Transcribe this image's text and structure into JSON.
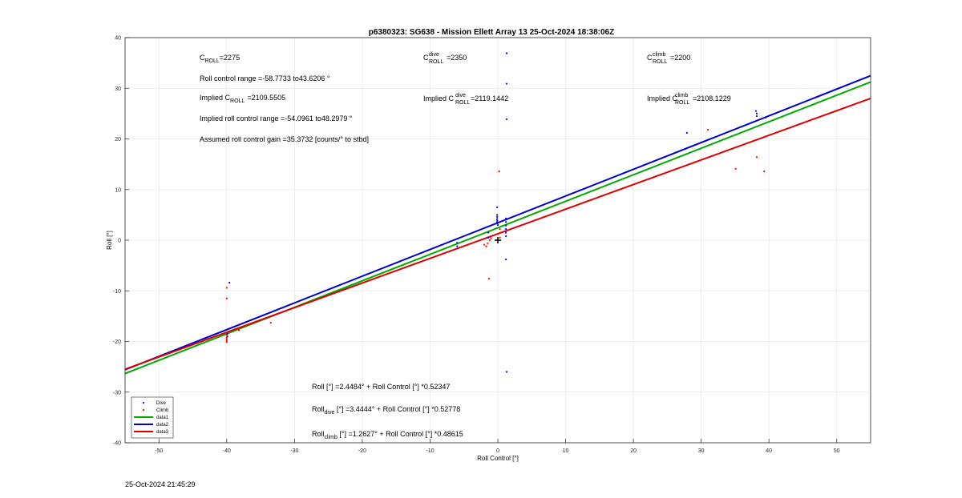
{
  "footer": {
    "timestamp": "25-Oct-2024 21:45:29"
  },
  "annotations": {
    "c_roll": {
      "main": "C",
      "sub": "ROLL",
      "value": "=2275"
    },
    "c_roll_dive": {
      "main": "C",
      "sup": "dive",
      "sub": "ROLL",
      "value": "=2350"
    },
    "c_roll_climb": {
      "main": "C",
      "sup": "climb",
      "sub": "ROLL",
      "value": "=2200"
    },
    "roll_range": "Roll control range =-58.7733 to43.6206 °",
    "implied_c_roll": {
      "prefix": "Implied C",
      "sub": "ROLL",
      "value": "=2109.5505"
    },
    "implied_c_roll_dive": {
      "prefix": "Implied C",
      "sup": "dive",
      "sub": "ROLL",
      "value": "=2119.1442"
    },
    "implied_c_roll_climb": {
      "prefix": "Implied C",
      "sup": "climb",
      "sub": "ROLL",
      "value": "=2108.1229"
    },
    "implied_range": "Implied roll control range =-54.0961 to48.2979 °",
    "gain": "Assumed roll control gain =35.3732 [counts/° to stbd]",
    "eq_all": "Roll [°] =2.4484° + Roll Control [°] *0.52347",
    "eq_dive": {
      "main": "Roll",
      "sub": "dive",
      "rest": " [°] =3.4444° + Roll Control [°] *0.52778"
    },
    "eq_climb": {
      "main": "Roll",
      "sub": "climb",
      "rest": " [°] =1.2627° + Roll Control [°] *0.48615"
    }
  },
  "chart_data": {
    "type": "scatter",
    "title": "p6380323: SG638 - Mission Ellett Array 13 25-Oct-2024 18:38:06Z",
    "xlabel": "Roll Control [°]",
    "ylabel": "Roll [°]",
    "xlim": [
      -55,
      55
    ],
    "ylim": [
      -40,
      40
    ],
    "xticks": [
      -50,
      -40,
      -30,
      -20,
      -10,
      0,
      10,
      20,
      30,
      40,
      50
    ],
    "yticks": [
      -40,
      -30,
      -20,
      -10,
      0,
      10,
      20,
      30,
      40
    ],
    "grid": true,
    "legend_location": "bottom-left",
    "center_marker": [
      0,
      0
    ],
    "series": [
      {
        "name": "Dive",
        "kind": "points",
        "color": "#0000ff",
        "points": [
          [
            -39.6,
            -8.4
          ],
          [
            -39.9,
            -18.5
          ],
          [
            -39.9,
            -19.0
          ],
          [
            -6.0,
            -0.5
          ],
          [
            -6.0,
            -1.2
          ],
          [
            -1.4,
            0.5
          ],
          [
            -1.4,
            1.5
          ],
          [
            -0.1,
            6.5
          ],
          [
            -0.1,
            5.0
          ],
          [
            -0.1,
            4.6
          ],
          [
            -0.1,
            4.2
          ],
          [
            -0.1,
            3.9
          ],
          [
            -0.1,
            3.6
          ],
          [
            -0.1,
            3.3
          ],
          [
            0.0,
            3.0
          ],
          [
            1.2,
            4.3
          ],
          [
            1.2,
            3.6
          ],
          [
            1.2,
            2.9
          ],
          [
            1.2,
            2.2
          ],
          [
            1.2,
            1.5
          ],
          [
            1.2,
            0.8
          ],
          [
            1.3,
            36.9
          ],
          [
            1.3,
            30.9
          ],
          [
            1.3,
            23.9
          ],
          [
            1.2,
            -3.8
          ],
          [
            1.3,
            -26.0
          ],
          [
            27.9,
            21.2
          ],
          [
            38.1,
            25.5
          ],
          [
            38.2,
            25.0
          ],
          [
            38.2,
            24.5
          ],
          [
            39.5,
            24.2
          ]
        ]
      },
      {
        "name": "Climb",
        "kind": "points",
        "color": "#ff0000",
        "points": [
          [
            -40.0,
            -9.4
          ],
          [
            -40.0,
            -11.5
          ],
          [
            -40.0,
            -18.7
          ],
          [
            -40.0,
            -19.2
          ],
          [
            -40.0,
            -19.5
          ],
          [
            -40.0,
            -19.8
          ],
          [
            -40.0,
            -20.1
          ],
          [
            -38.2,
            -17.8
          ],
          [
            -33.5,
            -16.3
          ],
          [
            -1.5,
            -0.6
          ],
          [
            -1.2,
            0.0
          ],
          [
            -1.0,
            0.4
          ],
          [
            -1.3,
            -7.6
          ],
          [
            -1.7,
            -1.2
          ],
          [
            -2.0,
            -0.9
          ],
          [
            0.2,
            13.6
          ],
          [
            0.3,
            0.5
          ],
          [
            0.4,
            1.5
          ],
          [
            0.3,
            2.2
          ],
          [
            31.0,
            21.8
          ],
          [
            35.1,
            14.1
          ],
          [
            38.2,
            16.4
          ],
          [
            39.3,
            13.6
          ]
        ]
      },
      {
        "name": "data1",
        "kind": "fit",
        "color": "#00aa00",
        "intercept": 2.4484,
        "slope": 0.52347
      },
      {
        "name": "data2",
        "kind": "fit",
        "color": "#0000cc",
        "intercept": 3.4444,
        "slope": 0.52778
      },
      {
        "name": "data3",
        "kind": "fit",
        "color": "#dd0000",
        "intercept": 1.2627,
        "slope": 0.48615
      }
    ]
  }
}
